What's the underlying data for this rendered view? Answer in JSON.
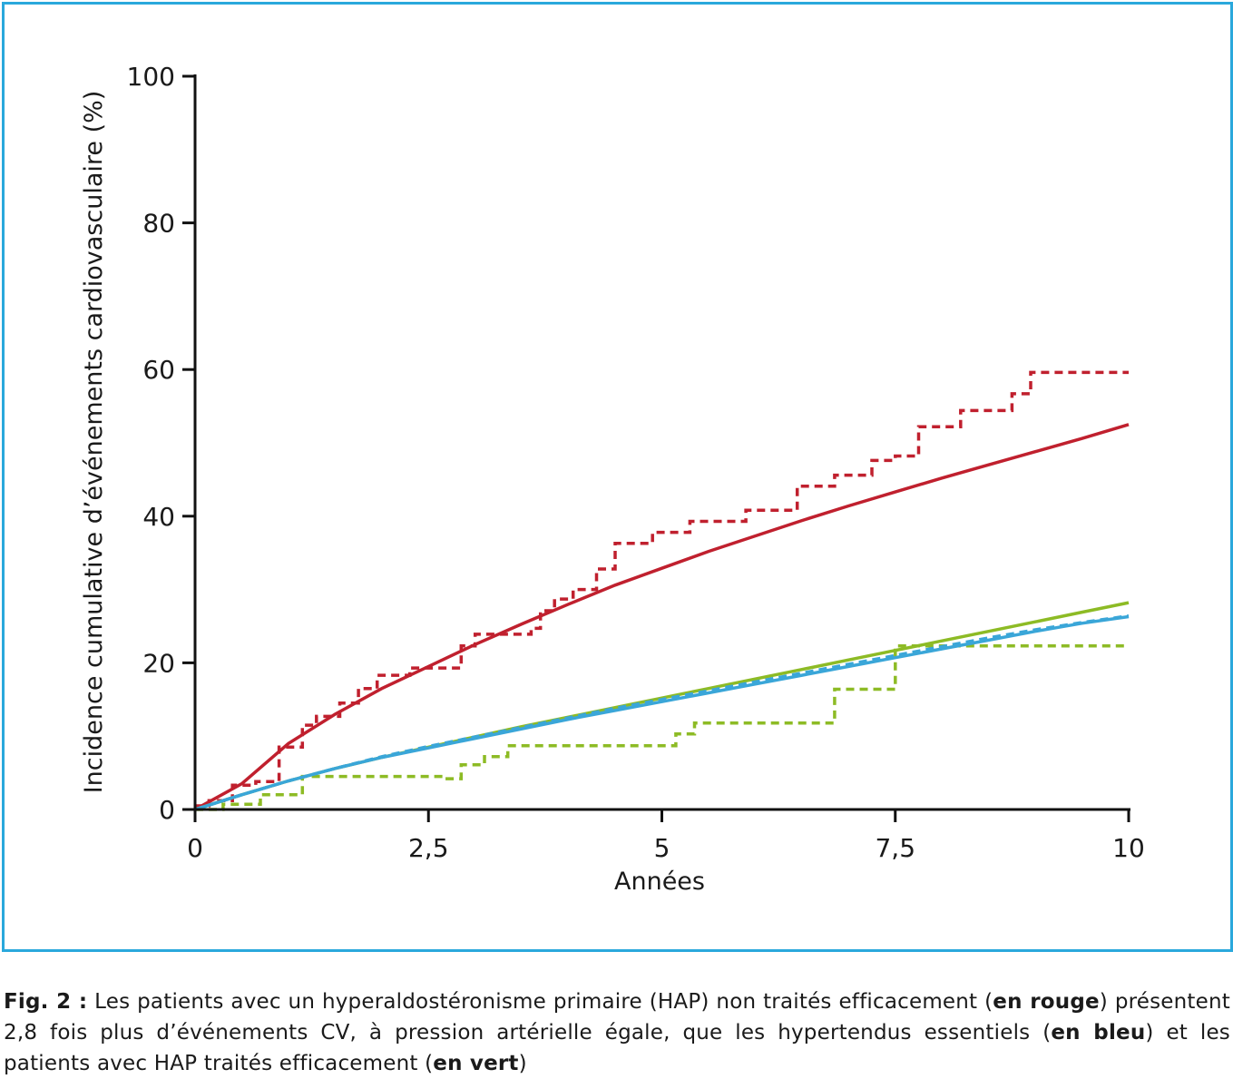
{
  "chart_data": {
    "type": "line",
    "title": "",
    "xlabel": "Années",
    "ylabel": "Incidence cumulative d’événements cardiovasculaire (%)",
    "xlim": [
      0,
      10
    ],
    "ylim": [
      0,
      100
    ],
    "x_ticks": [
      0,
      2.5,
      5,
      7.5,
      10
    ],
    "x_tick_labels": [
      "0",
      "2,5",
      "5",
      "7,5",
      "10"
    ],
    "y_ticks": [
      0,
      20,
      40,
      60,
      80,
      100
    ],
    "y_tick_labels": [
      "0",
      "20",
      "40",
      "60",
      "80",
      "100"
    ],
    "grid": false,
    "series": [
      {
        "color": "#c0202e",
        "style": "solid",
        "x": [
          0,
          0.5,
          1,
          1.5,
          2,
          2.5,
          3,
          3.5,
          4,
          4.5,
          5,
          5.5,
          6,
          6.5,
          7,
          7.5,
          8,
          8.5,
          9,
          9.5,
          10
        ],
        "y": [
          0,
          3.5,
          9,
          13,
          16.5,
          19.5,
          22.5,
          25.3,
          28,
          30.6,
          32.9,
          35.2,
          37.3,
          39.4,
          41.4,
          43.3,
          45.2,
          47,
          48.8,
          50.6,
          52.5
        ]
      },
      {
        "color": "#c0202e",
        "style": "dashed",
        "x": [
          0,
          0.15,
          0.15,
          0.4,
          0.4,
          0.65,
          0.65,
          0.9,
          0.9,
          1.15,
          1.15,
          1.3,
          1.3,
          1.55,
          1.55,
          1.75,
          1.75,
          1.95,
          1.95,
          2.3,
          2.3,
          2.85,
          2.85,
          3.0,
          3.0,
          3.6,
          3.6,
          3.7,
          3.7,
          3.85,
          3.85,
          4.05,
          4.05,
          4.3,
          4.3,
          4.5,
          4.5,
          4.9,
          4.9,
          5.3,
          5.3,
          5.9,
          5.9,
          6.45,
          6.45,
          6.85,
          6.85,
          7.25,
          7.25,
          7.5,
          7.5,
          7.75,
          7.75,
          8.2,
          8.2,
          8.75,
          8.75,
          8.95,
          8.95,
          9.3,
          9.3,
          10
        ],
        "y": [
          0.5,
          0.5,
          1.2,
          1.2,
          3.3,
          3.3,
          3.8,
          3.8,
          8.5,
          8.5,
          11.5,
          11.5,
          12.7,
          12.7,
          14.5,
          14.5,
          16.5,
          16.5,
          18.3,
          18.3,
          19.3,
          19.3,
          22.3,
          22.3,
          23.9,
          23.9,
          24.7,
          24.7,
          27.1,
          27.1,
          28.7,
          28.7,
          30.0,
          30.0,
          32.8,
          32.8,
          36.3,
          36.3,
          37.8,
          37.8,
          39.3,
          39.3,
          40.8,
          40.8,
          44.1,
          44.1,
          45.6,
          45.6,
          47.6,
          47.6,
          48.2,
          48.2,
          52.2,
          52.2,
          54.4,
          54.4,
          56.7,
          56.7,
          59.6,
          59.6,
          59.6,
          59.6
        ]
      },
      {
        "color": "#8dbb25",
        "style": "solid",
        "x": [
          0,
          0.5,
          1,
          1.5,
          2,
          2.5,
          3,
          3.5,
          4,
          4.5,
          5,
          5.5,
          6,
          6.5,
          7,
          7.5,
          8,
          8.5,
          9,
          9.5,
          10
        ],
        "y": [
          0,
          2,
          3.9,
          5.6,
          7.1,
          8.5,
          9.9,
          11.3,
          12.6,
          13.9,
          15.2,
          16.5,
          17.8,
          19.1,
          20.4,
          21.7,
          23,
          24.3,
          25.6,
          26.9,
          28.2
        ]
      },
      {
        "color": "#8dbb25",
        "style": "dashed",
        "x": [
          0,
          0.3,
          0.3,
          0.7,
          0.7,
          0.9,
          0.9,
          1.15,
          1.15,
          2.7,
          2.7,
          2.85,
          2.85,
          3.0,
          3.0,
          3.1,
          3.1,
          3.35,
          3.35,
          5.0,
          5.0,
          5.15,
          5.15,
          5.35,
          5.35,
          6.85,
          6.85,
          7.5,
          7.5,
          7.9,
          7.9,
          10
        ],
        "y": [
          0,
          0,
          0.7,
          0.7,
          2.0,
          2.0,
          2.0,
          2.0,
          4.5,
          4.5,
          4.2,
          4.2,
          6.1,
          6.1,
          6.1,
          6.1,
          7.2,
          7.2,
          8.7,
          8.7,
          8.7,
          8.7,
          10.3,
          10.3,
          11.8,
          11.8,
          16.4,
          16.4,
          22.3,
          22.3,
          22.3,
          22.3
        ]
      },
      {
        "color": "#3aa6d8",
        "style": "solid",
        "x": [
          0,
          0.5,
          1,
          1.5,
          2,
          2.5,
          3,
          3.5,
          4,
          4.5,
          5,
          5.5,
          6,
          6.5,
          7,
          7.5,
          8,
          8.5,
          9,
          9.5,
          10
        ],
        "y": [
          0,
          2,
          3.9,
          5.6,
          7.1,
          8.4,
          9.7,
          11,
          12.3,
          13.5,
          14.7,
          15.9,
          17.1,
          18.3,
          19.5,
          20.7,
          21.9,
          23.1,
          24.3,
          25.4,
          26.3
        ]
      },
      {
        "color": "#3aa6d8",
        "style": "dashed",
        "x": [
          0,
          0.5,
          1,
          1.5,
          2,
          2.5,
          3,
          3.5,
          4,
          4.5,
          5,
          5.5,
          6,
          6.5,
          7,
          7.5,
          8,
          8.5,
          9,
          9.5,
          10
        ],
        "y": [
          0,
          2,
          3.9,
          5.6,
          7.2,
          8.6,
          9.9,
          11.2,
          12.5,
          13.8,
          15.0,
          16.2,
          17.4,
          18.6,
          19.8,
          21.0,
          22.2,
          23.4,
          24.5,
          25.5,
          26.4
        ]
      }
    ]
  },
  "caption": {
    "label": "Fig. 2 :",
    "text_1": " Les patients avec un hyperaldostéronisme primaire (HAP) non traités efficacement (",
    "red": "en rouge",
    "text_2": ") présentent 2,8 fois plus d’événements CV, à pression artérielle égale, que les hypertendus essentiels (",
    "blue": "en bleu",
    "text_3": ") et les patients avec HAP traités efficacement (",
    "green": "en vert",
    "text_4": ")"
  }
}
